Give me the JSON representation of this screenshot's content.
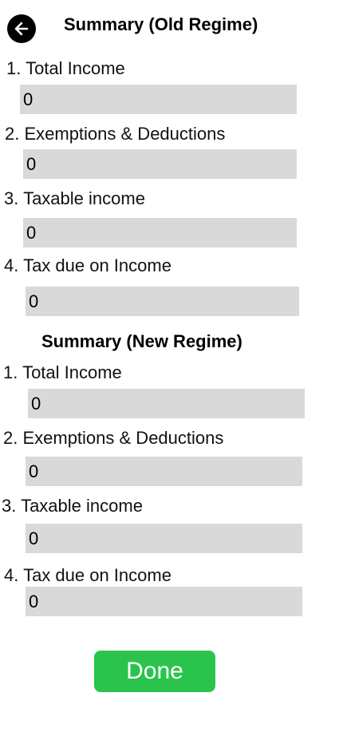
{
  "header": {
    "back_icon": "arrow-left-icon",
    "title": "Summary (Old Regime)"
  },
  "old_regime": {
    "items": [
      {
        "label": "1. Total Income",
        "value": "0"
      },
      {
        "label": "2. Exemptions & Deductions",
        "value": "0"
      },
      {
        "label": "3. Taxable income",
        "value": "0"
      },
      {
        "label": "4. Tax due on Income",
        "value": "0"
      }
    ]
  },
  "new_regime": {
    "title": "Summary (New Regime)",
    "items": [
      {
        "label": "1. Total Income",
        "value": "0"
      },
      {
        "label": "2. Exemptions & Deductions",
        "value": "0"
      },
      {
        "label": "3. Taxable income",
        "value": "0"
      },
      {
        "label": "4. Tax due on Income",
        "value": "0"
      }
    ]
  },
  "actions": {
    "done_label": "Done"
  },
  "colors": {
    "field_background": "#d9d9d9",
    "done_button": "#2ac44c",
    "back_button": "#000000"
  }
}
